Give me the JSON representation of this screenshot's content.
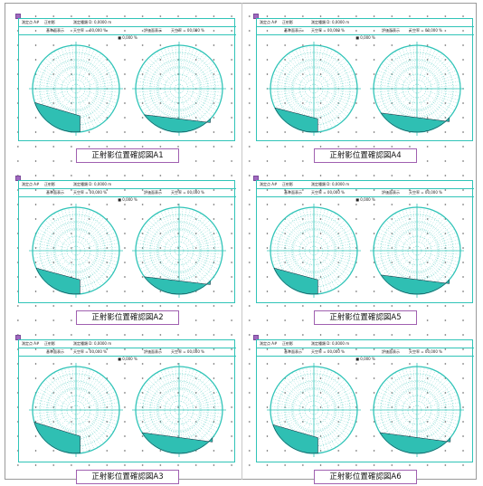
{
  "app": {
    "name": "正射影位置確認図",
    "header": {
      "row1": [
        "測定点 A#",
        "正射影",
        "測定種類 D: 0,0000 m"
      ],
      "row2_left": "基準面表示",
      "row2_right": "評価面表示",
      "row2_note": "天空率 = 00,000 %",
      "ratio_label": "■ 0,000 %"
    },
    "colors": {
      "teal": "#30c4b8",
      "fill": "#2fbfb3",
      "frame_handle": "#a069c0",
      "title_border": "#a060b0"
    },
    "panels": [
      {
        "title": "正射影位置確認図A1",
        "shade_left": 0.34,
        "shade_right": 0.2
      },
      {
        "title": "正射影位置確認図A2",
        "shade_left": 0.3,
        "shade_right": 0.2
      },
      {
        "title": "正射影位置確認図A3",
        "shade_left": 0.36,
        "shade_right": 0.24
      },
      {
        "title": "正射影位置確認図A4",
        "shade_left": 0.28,
        "shade_right": 0.22
      },
      {
        "title": "正射影位置確認図A5",
        "shade_left": 0.3,
        "shade_right": 0.22
      },
      {
        "title": "正射影位置確認図A6",
        "shade_left": 0.33,
        "shade_right": 0.24
      }
    ]
  }
}
